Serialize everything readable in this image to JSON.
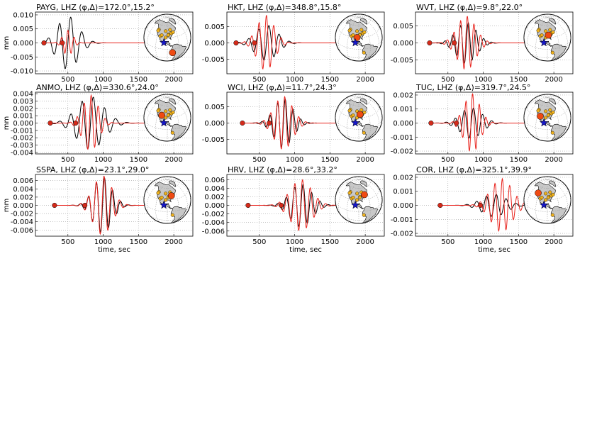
{
  "figure": {
    "xlabel": "time, sec",
    "ylabel": "mm"
  },
  "colors": {
    "data_trace": "#000000",
    "synthetic_trace": "#e8221c",
    "pick_marker": "#d42a1a",
    "star": "#1717c9",
    "station_dot": "#f0b21c",
    "highlight_station": "#ef4a12",
    "land": "#c8c8c8",
    "ocean": "#ffffff"
  },
  "chart_data": [
    {
      "type": "line",
      "station": "PAYG",
      "channel": "LHZ",
      "phi": "172.0",
      "delta": "15.2",
      "title": "PAYG, LHZ (φ,Δ)=172.0°,15.2°",
      "xlim": [
        40,
        2270
      ],
      "ylim": [
        -0.011,
        0.011
      ],
      "xticks": [
        "500",
        "1000",
        "1500",
        "2000"
      ],
      "yticks": [
        "-0.010",
        "-0.005",
        "0.000",
        "0.005",
        "0.010"
      ],
      "pick_times": [
        160,
        420
      ],
      "series": [
        {
          "t0": 500,
          "amp": 0.0095,
          "period": 160,
          "width": 150,
          "shift": 0
        },
        {
          "t0": 500,
          "amp": 0.0045,
          "period": 90,
          "width": 70,
          "shift": 0.5
        }
      ],
      "map": {
        "star_lat": 17,
        "star_lon": -99,
        "big_lat": -11,
        "big_lon": -77
      }
    },
    {
      "type": "line",
      "station": "HKT",
      "channel": "LHZ",
      "phi": "348.8",
      "delta": "15.8",
      "title": "HKT, LHZ (φ,Δ)=348.8°,15.8°",
      "xlim": [
        40,
        2270
      ],
      "ylim": [
        -0.0095,
        0.0095
      ],
      "xticks": [
        "500",
        "1000",
        "1500",
        "2000"
      ],
      "yticks": [
        "-0.005",
        "0.000",
        "0.005"
      ],
      "pick_times": [
        170,
        430
      ],
      "series": [
        {
          "t0": 600,
          "amp": 0.0055,
          "period": 145,
          "width": 150,
          "shift": 0
        },
        {
          "t0": 590,
          "amp": 0.0085,
          "period": 105,
          "width": 120,
          "shift": 0.3
        }
      ],
      "map": {
        "star_lat": 17,
        "star_lon": -99,
        "big_lat": 30,
        "big_lon": -95
      }
    },
    {
      "type": "line",
      "station": "WVT",
      "channel": "LHZ",
      "phi": "9.8",
      "delta": "22.0",
      "title": "WVT, LHZ (φ,Δ)=9.8°,22.0°",
      "xlim": [
        40,
        2270
      ],
      "ylim": [
        -0.009,
        0.009
      ],
      "xticks": [
        "500",
        "1000",
        "1500",
        "2000"
      ],
      "yticks": [
        "-0.005",
        "0.000",
        "0.005"
      ],
      "pick_times": [
        240,
        590
      ],
      "series": [
        {
          "t0": 760,
          "amp": 0.006,
          "period": 110,
          "width": 140,
          "shift": 0
        },
        {
          "t0": 760,
          "amp": 0.0078,
          "period": 95,
          "width": 130,
          "shift": 0.2
        }
      ],
      "map": {
        "star_lat": 17,
        "star_lon": -99,
        "big_lat": 36,
        "big_lon": -87
      }
    },
    {
      "type": "line",
      "station": "ANMO",
      "channel": "LHZ",
      "phi": "330.6",
      "delta": "24.0",
      "title": "ANMO, LHZ (φ,Δ)=330.6°,24.0°",
      "xlim": [
        40,
        2270
      ],
      "ylim": [
        -0.0042,
        0.0042
      ],
      "xticks": [
        "500",
        "1000",
        "1500",
        "2000"
      ],
      "yticks": [
        "-0.004",
        "-0.003",
        "-0.002",
        "-0.001",
        "0.000",
        "0.001",
        "0.002",
        "0.003",
        "0.004"
      ],
      "pick_times": [
        250,
        610
      ],
      "series": [
        {
          "t0": 820,
          "amp": 0.0036,
          "period": 160,
          "width": 190,
          "shift": 0
        },
        {
          "t0": 820,
          "amp": 0.0038,
          "period": 100,
          "width": 110,
          "shift": 0.3
        }
      ],
      "map": {
        "star_lat": 17,
        "star_lon": -99,
        "big_lat": 35,
        "big_lon": -107
      }
    },
    {
      "type": "line",
      "station": "WCI",
      "channel": "LHZ",
      "phi": "11.7",
      "delta": "24.3",
      "title": "WCI, LHZ (φ,Δ)=11.7°,24.3°",
      "xlim": [
        40,
        2270
      ],
      "ylim": [
        -0.0095,
        0.0095
      ],
      "xticks": [
        "500",
        "1000",
        "1500",
        "2000"
      ],
      "yticks": [
        "-0.005",
        "0.000",
        "0.005"
      ],
      "pick_times": [
        260,
        640
      ],
      "series": [
        {
          "t0": 840,
          "amp": 0.0075,
          "period": 110,
          "width": 130,
          "shift": 0
        },
        {
          "t0": 840,
          "amp": 0.0082,
          "period": 100,
          "width": 130,
          "shift": 0.1
        }
      ],
      "map": {
        "star_lat": 17,
        "star_lon": -99,
        "big_lat": 38,
        "big_lon": -86
      }
    },
    {
      "type": "line",
      "station": "TUC",
      "channel": "LHZ",
      "phi": "319.7",
      "delta": "24.5",
      "title": "TUC, LHZ (φ,Δ)=319.7°,24.5°",
      "xlim": [
        40,
        2270
      ],
      "ylim": [
        -0.0022,
        0.0022
      ],
      "xticks": [
        "500",
        "1000",
        "1500",
        "2000"
      ],
      "yticks": [
        "-0.002",
        "-0.001",
        "0.000",
        "0.001",
        "0.002"
      ],
      "pick_times": [
        260,
        620
      ],
      "series": [
        {
          "t0": 830,
          "amp": 0.0011,
          "period": 130,
          "width": 150,
          "shift": 0
        },
        {
          "t0": 840,
          "amp": 0.0021,
          "period": 95,
          "width": 110,
          "shift": 0.3
        }
      ],
      "map": {
        "star_lat": 17,
        "star_lon": -99,
        "big_lat": 32,
        "big_lon": -111
      }
    },
    {
      "type": "line",
      "station": "SSPA",
      "channel": "LHZ",
      "phi": "23.1",
      "delta": "29.0",
      "title": "SSPA, LHZ (φ,Δ)=23.1°,29.0°",
      "xlim": [
        40,
        2270
      ],
      "ylim": [
        -0.0075,
        0.0075
      ],
      "xticks": [
        "500",
        "1000",
        "1500",
        "2000"
      ],
      "yticks": [
        "-0.006",
        "-0.004",
        "-0.002",
        "0.000",
        "0.002",
        "0.004",
        "0.006"
      ],
      "pick_times": [
        310,
        740
      ],
      "series": [
        {
          "t0": 990,
          "amp": 0.0068,
          "period": 115,
          "width": 130,
          "shift": 0
        },
        {
          "t0": 990,
          "amp": 0.0072,
          "period": 110,
          "width": 130,
          "shift": 0.1
        }
      ],
      "map": {
        "star_lat": 17,
        "star_lon": -99,
        "big_lat": 40,
        "big_lon": -77
      }
    },
    {
      "type": "line",
      "station": "HRV",
      "channel": "LHZ",
      "phi": "28.6",
      "delta": "33.2",
      "title": "HRV, LHZ (φ,Δ)=28.6°,33.2°",
      "xlim": [
        40,
        2270
      ],
      "ylim": [
        -0.0072,
        0.0072
      ],
      "xticks": [
        "500",
        "1000",
        "1500",
        "2000"
      ],
      "yticks": [
        "-0.006",
        "-0.004",
        "-0.002",
        "0.000",
        "0.002",
        "0.004",
        "0.006"
      ],
      "pick_times": [
        340,
        810
      ],
      "series": [
        {
          "t0": 1090,
          "amp": 0.005,
          "period": 120,
          "width": 150,
          "shift": 0
        },
        {
          "t0": 1090,
          "amp": 0.006,
          "period": 110,
          "width": 150,
          "shift": 0.1
        }
      ],
      "map": {
        "star_lat": 17,
        "star_lon": -99,
        "big_lat": 42,
        "big_lon": -71
      }
    },
    {
      "type": "line",
      "station": "COR",
      "channel": "LHZ",
      "phi": "325.1",
      "delta": "39.9",
      "title": "COR, LHZ (φ,Δ)=325.1°,39.9°",
      "xlim": [
        40,
        2270
      ],
      "ylim": [
        -0.0022,
        0.0022
      ],
      "xticks": [
        "500",
        "1000",
        "1500",
        "2000"
      ],
      "yticks": [
        "-0.002",
        "-0.001",
        "0.000",
        "0.001",
        "0.002"
      ],
      "pick_times": [
        390,
        960
      ],
      "series": [
        {
          "t0": 1150,
          "amp": 0.0008,
          "period": 140,
          "width": 170,
          "shift": 0
        },
        {
          "t0": 1260,
          "amp": 0.0019,
          "period": 105,
          "width": 150,
          "shift": 0.3
        }
      ],
      "map": {
        "star_lat": 17,
        "star_lon": -99,
        "big_lat": 44,
        "big_lon": -123
      }
    }
  ],
  "map_stations": [
    {
      "lat": 47,
      "lon": -122
    },
    {
      "lat": 44,
      "lon": -123
    },
    {
      "lat": 32,
      "lon": -111
    },
    {
      "lat": 35,
      "lon": -107
    },
    {
      "lat": 38,
      "lon": -86
    },
    {
      "lat": 36,
      "lon": -87
    },
    {
      "lat": 40,
      "lon": -77
    },
    {
      "lat": 42,
      "lon": -71
    },
    {
      "lat": 30,
      "lon": -95
    },
    {
      "lat": 46,
      "lon": -96
    },
    {
      "lat": -11,
      "lon": -77
    },
    {
      "lat": 49,
      "lon": -80
    }
  ]
}
